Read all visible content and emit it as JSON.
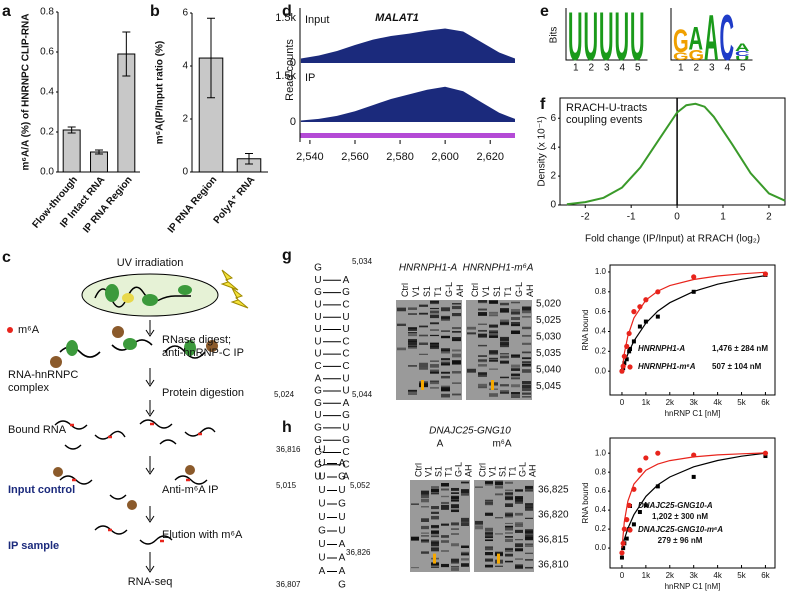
{
  "chart_data": [
    {
      "type": "bar",
      "panel": "a",
      "ylabel": "m⁶A/A (%) of HNRNPC CLIP-RNA",
      "categories": [
        "Flow-through",
        "IP Intact RNA",
        "IP RNA Region"
      ],
      "values": [
        0.21,
        0.1,
        0.59
      ],
      "errors": [
        0.015,
        0.01,
        0.11
      ],
      "color": "#c8c8c8",
      "ylim": [
        0,
        0.8
      ],
      "yticks": [
        {
          "value": 0,
          "label": "0.0"
        },
        0.2,
        0.4,
        0.6,
        0.8
      ]
    },
    {
      "type": "bar",
      "panel": "b",
      "ylabel": "m⁶A(IP/Input ratio (%)",
      "categories": [
        "IP RNA Region",
        "PolyA⁺ RNA"
      ],
      "values": [
        4.3,
        0.5
      ],
      "errors": [
        1.5,
        0.2
      ],
      "color": "#c8c8c8",
      "ylim": [
        0,
        6
      ],
      "yticks": [
        0,
        2,
        4,
        6
      ]
    },
    {
      "type": "area",
      "panel": "d",
      "title": "MALAT1",
      "ylabel": "Read counts",
      "x": [
        2536,
        2544,
        2552,
        2560,
        2568,
        2576,
        2584,
        2592,
        2600,
        2608,
        2616,
        2624,
        2631
      ],
      "series": [
        {
          "name": "Input",
          "color": "#1b2a7c",
          "values": [
            150,
            250,
            400,
            600,
            780,
            900,
            980,
            1080,
            1150,
            1050,
            700,
            350,
            150
          ]
        },
        {
          "name": "IP",
          "color": "#1b2a7c",
          "values": [
            50,
            100,
            200,
            350,
            550,
            750,
            900,
            1050,
            1150,
            1000,
            650,
            300,
            100
          ]
        }
      ],
      "xlim": [
        2535.6,
        2631
      ],
      "xticks": [
        {
          "value": 2540,
          "label": "2,540"
        },
        {
          "value": 2560,
          "label": "2,560"
        },
        {
          "value": 2580,
          "label": "2,580"
        },
        {
          "value": 2600,
          "label": "2,600"
        },
        {
          "value": 2620,
          "label": "2,620"
        }
      ],
      "ylim": [
        0,
        1500
      ],
      "yticks": [
        0,
        {
          "value": 1500,
          "label": "1.5k"
        }
      ]
    },
    {
      "type": "line",
      "panel": "f",
      "annotation": [
        "RRACH-U-tracts",
        "coupling events"
      ],
      "ylabel": "Density (x 10⁻¹)",
      "xlabel": "Fold change (IP/Input) at RRACH (log₂)",
      "x": [
        -2.4,
        -2,
        -1.6,
        -1.2,
        -0.8,
        -0.4,
        0,
        0.2,
        0.4,
        0.6,
        0.8,
        1.2,
        1.6,
        2,
        2.35
      ],
      "values": [
        0.05,
        0.2,
        0.5,
        1.2,
        2.6,
        4.5,
        6.4,
        6.9,
        7.0,
        6.8,
        6.1,
        4.2,
        2.2,
        0.8,
        0.3
      ],
      "color": "#3a9a2a",
      "reference_line": 0,
      "xlim": [
        -2.55,
        2.35
      ],
      "xticks": [
        -2,
        -1,
        0,
        1,
        2
      ],
      "ylim": [
        0,
        7.4
      ],
      "yticks": [
        0,
        2,
        4,
        6
      ]
    },
    {
      "type": "scatter",
      "panel": "g",
      "ylabel": "RNA bound",
      "xlabel": "hnRNP C1 [nM]",
      "series": [
        {
          "name": "HNRNPH1-A",
          "kd_label": "1,476 ± 284 nM",
          "color": "#000000",
          "x": [
            0,
            50,
            100,
            200,
            300,
            500,
            750,
            1000,
            1500,
            3000,
            6000
          ],
          "values": [
            0,
            0.03,
            0.08,
            0.12,
            0.2,
            0.3,
            0.45,
            0.5,
            0.55,
            0.8,
            0.97
          ],
          "fit": {
            "x": [
              0,
              100,
              250,
              500,
              1000,
              1500,
              2000,
              3000,
              4000,
              5000,
              6000
            ],
            "values": [
              0,
              0.076,
              0.174,
              0.304,
              0.485,
              0.605,
              0.69,
              0.804,
              0.877,
              0.926,
              0.963
            ]
          }
        },
        {
          "name": "HNRNPH1-m⁶A",
          "kd_label": "507 ± 104 nM",
          "color": "#e8241c",
          "x": [
            0,
            50,
            100,
            200,
            300,
            500,
            750,
            1000,
            1500,
            3000,
            6000
          ],
          "values": [
            0,
            0.05,
            0.15,
            0.25,
            0.38,
            0.6,
            0.65,
            0.72,
            0.8,
            0.95,
            0.98
          ],
          "fit": {
            "x": [
              0,
              100,
              250,
              500,
              1000,
              1500,
              2000,
              3000,
              4000,
              5000,
              6000
            ],
            "values": [
              0,
              0.178,
              0.357,
              0.536,
              0.717,
              0.807,
              0.862,
              0.924,
              0.959,
              0.981,
              0.996
            ]
          }
        }
      ],
      "xlim": [
        -500,
        6400
      ],
      "xticks": [
        0,
        {
          "value": 1000,
          "label": "1k"
        },
        {
          "value": 2000,
          "label": "2k"
        },
        {
          "value": 3000,
          "label": "3k"
        },
        {
          "value": 4000,
          "label": "4k"
        },
        {
          "value": 5000,
          "label": "5k"
        },
        {
          "value": 6000,
          "label": "6k"
        }
      ],
      "ylim": [
        -0.24,
        1.07
      ],
      "yticks": [
        {
          "value": 0,
          "label": "0.0"
        },
        0.2,
        0.4,
        0.6,
        0.8,
        {
          "value": 1,
          "label": "1.0"
        }
      ]
    },
    {
      "type": "scatter",
      "panel": "h",
      "ylabel": "RNA bound",
      "xlabel": "hnRNP C1 [nM]",
      "series": [
        {
          "name": "DNAJC25-GNG10-A",
          "kd_label": "1,202 ± 300 nM",
          "color": "#000000",
          "x": [
            0,
            50,
            100,
            200,
            300,
            500,
            750,
            1000,
            1500,
            3000,
            6000
          ],
          "values": [
            -0.1,
            0,
            0.05,
            0.1,
            0.2,
            0.25,
            0.38,
            0.45,
            0.65,
            0.75,
            0.97
          ],
          "fit": {
            "x": [
              0,
              100,
              250,
              500,
              1000,
              1500,
              2000,
              3000,
              4000,
              5000,
              6000
            ],
            "values": [
              0,
              0.092,
              0.207,
              0.352,
              0.545,
              0.666,
              0.749,
              0.857,
              0.923,
              0.968,
              1.0
            ]
          }
        },
        {
          "name": "DNAJC25-GNG10-m⁶A",
          "kd_label": "279 ± 96 nM",
          "color": "#e8241c",
          "x": [
            0,
            50,
            100,
            200,
            300,
            500,
            750,
            1000,
            1500,
            3000,
            6000
          ],
          "values": [
            -0.05,
            0.05,
            0.2,
            0.3,
            0.45,
            0.62,
            0.82,
            0.95,
            1.0,
            0.98,
            1.0
          ],
          "fit": {
            "x": [
              0,
              100,
              250,
              500,
              1000,
              1500,
              2000,
              3000,
              4000,
              5000,
              6000
            ],
            "values": [
              0,
              0.277,
              0.496,
              0.674,
              0.821,
              0.885,
              0.922,
              0.961,
              0.982,
              0.994,
              1.003
            ]
          }
        }
      ],
      "xlim": [
        -500,
        6400
      ],
      "xticks": [
        0,
        {
          "value": 1000,
          "label": "1k"
        },
        {
          "value": 2000,
          "label": "2k"
        },
        {
          "value": 3000,
          "label": "3k"
        },
        {
          "value": 4000,
          "label": "4k"
        },
        {
          "value": 5000,
          "label": "5k"
        },
        {
          "value": 6000,
          "label": "6k"
        }
      ],
      "ylim": [
        -0.21,
        1.16
      ],
      "yticks": [
        {
          "value": 0,
          "label": "0.0"
        },
        0.2,
        0.4,
        0.6,
        0.8,
        {
          "value": 1,
          "label": "1.0"
        }
      ]
    }
  ],
  "logos": {
    "panel": "e",
    "ylabel": "Bits",
    "ylim": [
      0,
      2
    ],
    "ticks": [
      "1",
      "2",
      "3",
      "4",
      "5"
    ],
    "motifs": [
      [
        [
          {
            "letter": "U",
            "bits": 1.9
          }
        ],
        [
          {
            "letter": "U",
            "bits": 1.9
          }
        ],
        [
          {
            "letter": "U",
            "bits": 1.9
          }
        ],
        [
          {
            "letter": "U",
            "bits": 1.9
          }
        ],
        [
          {
            "letter": "U",
            "bits": 1.9
          }
        ]
      ],
      [
        [
          {
            "letter": "G",
            "bits": 0.9
          },
          {
            "letter": "G",
            "bits": 0.3
          }
        ],
        [
          {
            "letter": "A",
            "bits": 0.9
          },
          {
            "letter": "G",
            "bits": 0.4
          }
        ],
        [
          {
            "letter": "A",
            "bits": 1.8
          }
        ],
        [
          {
            "letter": "C",
            "bits": 1.8
          }
        ],
        [
          {
            "letter": "A",
            "bits": 0.3
          },
          {
            "letter": "C",
            "bits": 0.2
          },
          {
            "letter": "U",
            "bits": 0.15
          }
        ]
      ]
    ]
  },
  "flow": {
    "panel": "c",
    "uv": "UV irradiation",
    "m6a": "m⁶A",
    "rnase": [
      "RNase digest;",
      "anti-hnRNP-C IP"
    ],
    "complex": [
      "RNA-hnRNPC",
      "complex"
    ],
    "protein": "Protein digestion",
    "bound": "Bound RNA",
    "input": "Input control",
    "anti": "Anti-m⁶A IP",
    "elution": "Elution with m⁶A",
    "ip": "IP sample",
    "seq": "RNA-seq"
  },
  "gels": [
    {
      "panel": "g",
      "headings": [
        "HNRNPH1-A",
        "HNRNPH1-m⁶A"
      ],
      "lanes": [
        "Ctrl",
        "V1",
        "S1",
        "T1",
        "G-L",
        "AH"
      ],
      "positions": [
        "5,020",
        "5,025",
        "5,030",
        "5,035",
        "5,040",
        "5,045"
      ],
      "left": [
        "G",
        "U",
        "G",
        "U",
        "U",
        "U",
        "U",
        "U",
        "C",
        "A",
        "G",
        "G",
        "U",
        "G",
        "G",
        "C",
        "G",
        "U"
      ],
      "right": [
        "A",
        "G",
        "C",
        "U",
        "U",
        "C",
        "C",
        "C",
        "U",
        "U",
        "A",
        "G",
        "U",
        "G",
        "C",
        "C",
        "A"
      ],
      "labels": [
        "5,034",
        "5,024",
        "5,044",
        "5,015",
        "5,052"
      ]
    },
    {
      "panel": "h",
      "heading": "DNAJC25-GNG10",
      "subheadings": [
        "A",
        "m⁶A"
      ],
      "lanes": [
        "Ctrl",
        "V1",
        "S1",
        "T1",
        "G-L",
        "AH"
      ],
      "positions": [
        "36,825",
        "36,820",
        "36,815",
        "36,810"
      ],
      "left": [
        "U",
        "U",
        "U",
        "U",
        "U",
        "U",
        "G",
        "U",
        "U",
        "A"
      ],
      "right": [
        "A",
        "G",
        "U",
        "G",
        "U",
        "U",
        "A",
        "A",
        "A",
        "G"
      ],
      "labels": [
        "36,816",
        "36,826",
        "36,807"
      ]
    }
  ]
}
